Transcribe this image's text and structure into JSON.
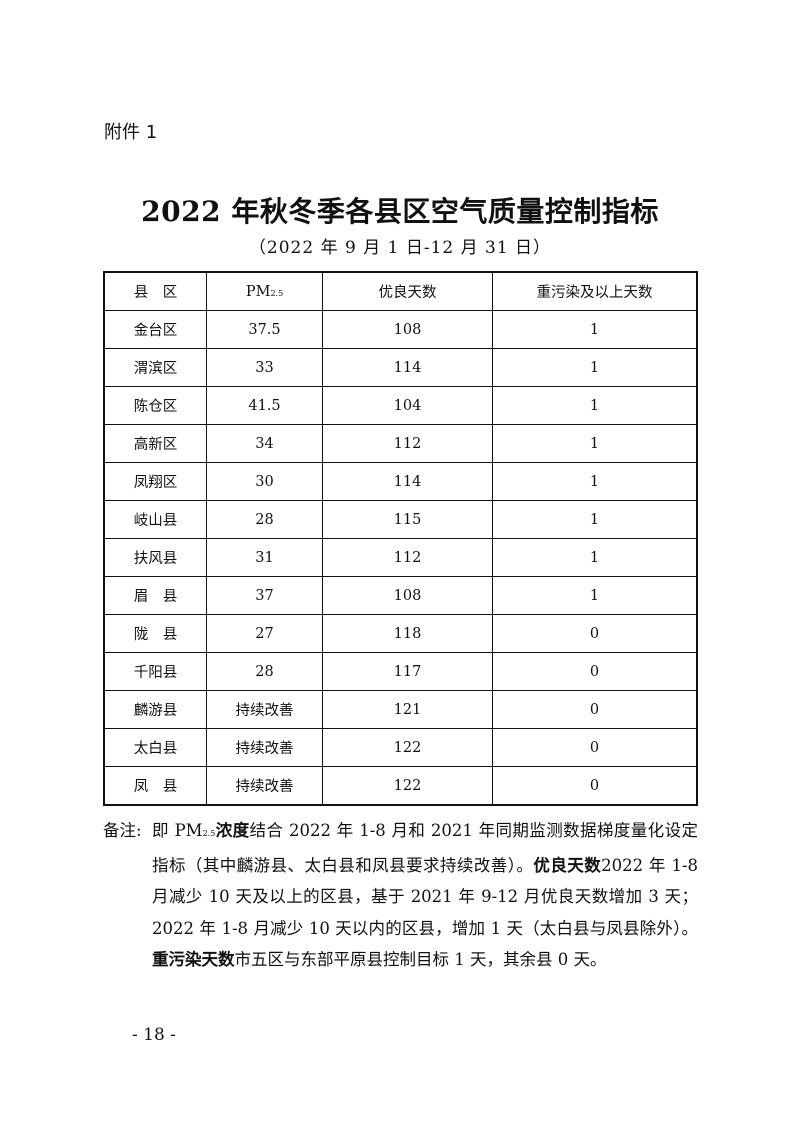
{
  "attachment_label": "附件 1",
  "title": "2022 年秋冬季各县区空气质量控制指标",
  "subtitle": "（2022 年 9 月 1 日-12 月 31 日）",
  "table": {
    "headers": [
      "县　区",
      "PM",
      "优良天数",
      "重污染及以上天数"
    ],
    "pm_sub": "2.5",
    "rows": [
      [
        "金台区",
        "37.5",
        "108",
        "1"
      ],
      [
        "渭滨区",
        "33",
        "114",
        "1"
      ],
      [
        "陈仓区",
        "41.5",
        "104",
        "1"
      ],
      [
        "高新区",
        "34",
        "112",
        "1"
      ],
      [
        "凤翔区",
        "30",
        "114",
        "1"
      ],
      [
        "岐山县",
        "28",
        "115",
        "1"
      ],
      [
        "扶风县",
        "31",
        "112",
        "1"
      ],
      [
        "眉　县",
        "37",
        "108",
        "1"
      ],
      [
        "陇　县",
        "27",
        "118",
        "0"
      ],
      [
        "千阳县",
        "28",
        "117",
        "0"
      ],
      [
        "麟游县",
        "持续改善",
        "121",
        "0"
      ],
      [
        "太白县",
        "持续改善",
        "122",
        "0"
      ],
      [
        "凤　县",
        "持续改善",
        "122",
        "0"
      ]
    ]
  },
  "notes": {
    "label": "备注:",
    "p1": "即 PM",
    "p1_sub": "2.5",
    "b1": "浓度",
    "p2": "结合 2022 年 1-8 月和 2021 年同期监测数据梯度量化设定指标（其中麟游县、太白县和凤县要求持续改善）。",
    "b2": "优良天数",
    "p3": "2022 年 1-8 月减少 10 天及以上的区县，基于 2021 年 9-12 月优良天数增加 3 天；2022 年 1-8 月减少 10 天以内的区县，增加 1 天（太白县与凤县除外）。",
    "b3": "重污染天数",
    "p4": "市五区与东部平原县控制目标 1 天，其余县 0 天。"
  },
  "page_number": "- 18 -"
}
